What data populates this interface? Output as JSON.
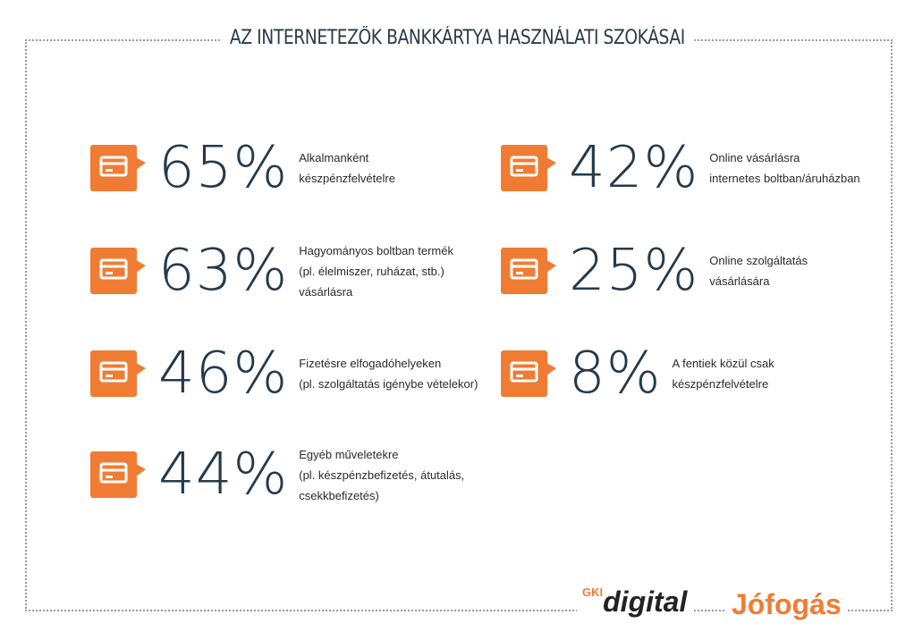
{
  "header": {
    "title": "AZ INTERNETEZŐK BANKKÁRTYA HASZNÁLATI SZOKÁSAI"
  },
  "left_items": [
    {
      "value": "65%",
      "lines": [
        "Alkalmanként",
        "készpénzfelvételre"
      ]
    },
    {
      "value": "63%",
      "lines": [
        "Hagyományos boltban termék",
        "(pl. élelmiszer, ruházat, stb.)",
        "vásárlásra"
      ]
    },
    {
      "value": "46%",
      "lines": [
        "Fizetésre elfogadóhelyeken",
        "(pl. szolgáltatás igénybe vételekor)"
      ]
    },
    {
      "value": "44%",
      "lines": [
        "Egyéb műveletekre",
        "(pl. készpénzbefizetés, átutalás,",
        "csekkbefizetés)"
      ]
    }
  ],
  "right_items": [
    {
      "value": "42%",
      "lines": [
        "Online vásárlásra",
        "internetes boltban/áruházban"
      ]
    },
    {
      "value": "25%",
      "lines": [
        "Online szolgáltatás",
        "vásárlására"
      ]
    },
    {
      "value": "8%",
      "lines": [
        "A fentiek közül csak",
        "készpénzfelvételre"
      ]
    }
  ],
  "footer": {
    "logo1_prefix": "GKI",
    "logo1": "digital",
    "logo2": "Jófogás"
  }
}
